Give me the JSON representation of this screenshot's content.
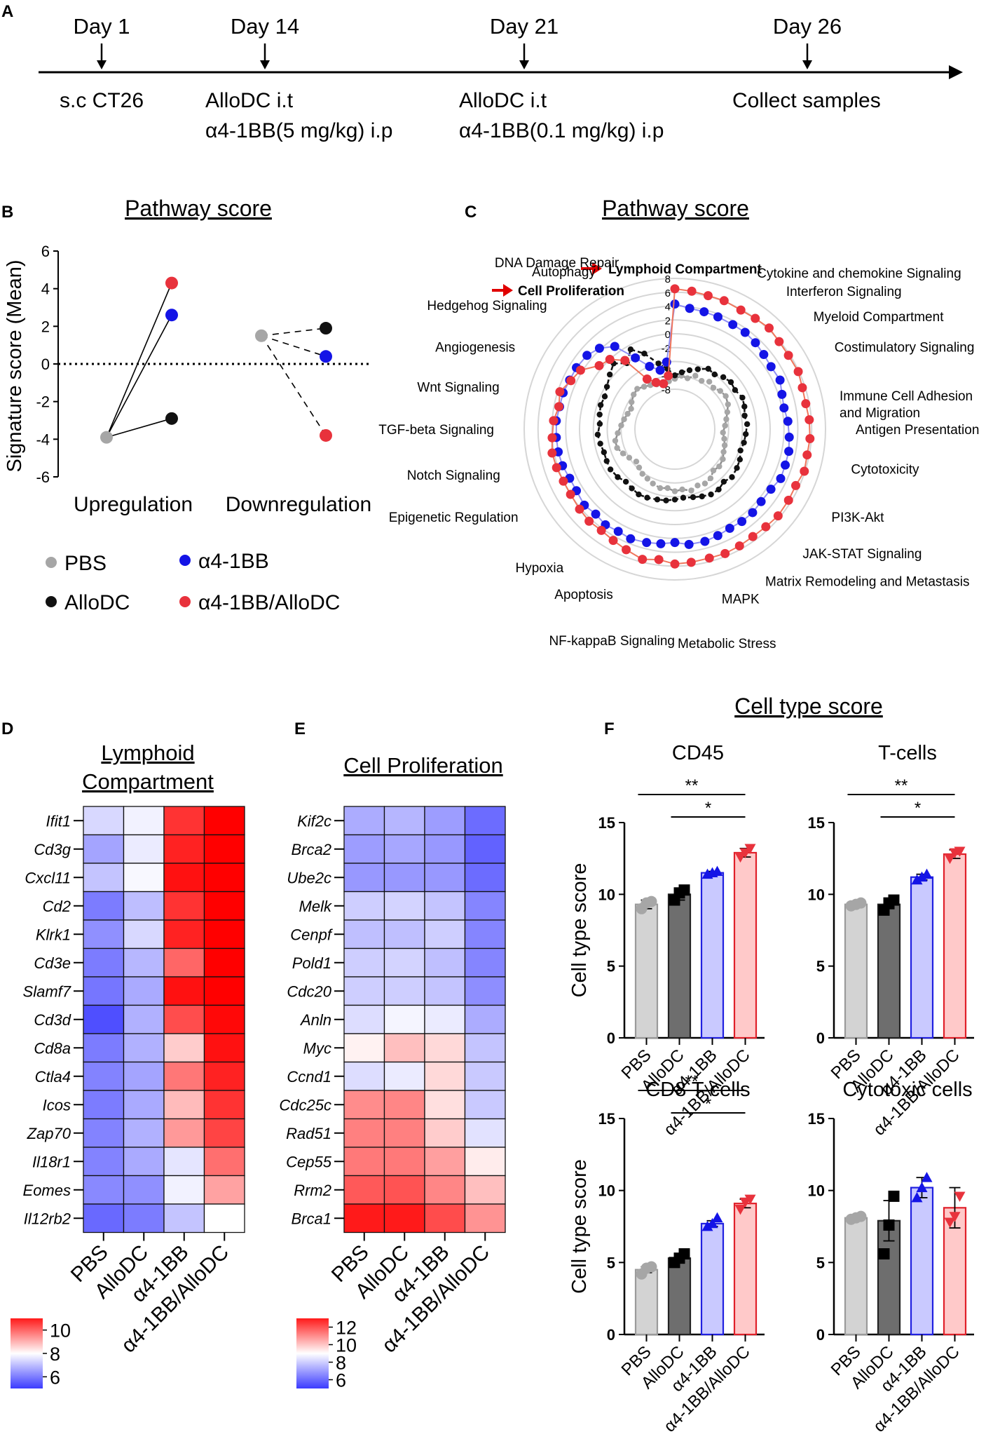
{
  "colors": {
    "pbs": "#a6a6a6",
    "allodc": "#111111",
    "a41bb": "#1414e6",
    "combo": "#e8323c",
    "arrow": "#e00000",
    "heat_low": "#3b3bff",
    "heat_mid": "#ffffff",
    "heat_high": "#ff0000"
  },
  "panelA": {
    "letter": "A",
    "events": [
      {
        "day": "Day 1",
        "lines": [
          "s.c CT26"
        ]
      },
      {
        "day": "Day 14",
        "lines": [
          "AlloDC i.t",
          "α4-1BB(5 mg/kg) i.p"
        ]
      },
      {
        "day": "Day 21",
        "lines": [
          "AlloDC i.t",
          "α4-1BB(0.1 mg/kg) i.p"
        ]
      },
      {
        "day": "Day 26",
        "lines": [
          "Collect samples"
        ]
      }
    ]
  },
  "legend": {
    "pbs": "PBS",
    "allodc": "AlloDC",
    "a41bb": "α4-1BB",
    "combo": "α4-1BB/AlloDC"
  },
  "chart_data": [
    {
      "id": "B",
      "letter": "B",
      "type": "scatter",
      "title": "Pathway score",
      "xlabel": "",
      "ylabel": "Signature score (Mean)",
      "ylim": [
        -6,
        6
      ],
      "yticks": [
        "6",
        "4",
        "2",
        "0",
        "-2",
        "-4",
        "-6"
      ],
      "categories": [
        "Upregulation",
        "Downregulation"
      ],
      "baseline": {
        "Upregulation": -3.9,
        "Downregulation": 1.5
      },
      "series": [
        {
          "name": "AlloDC",
          "Upregulation": -2.9,
          "Downregulation": 1.9
        },
        {
          "name": "α4-1BB",
          "Upregulation": 2.6,
          "Downregulation": 0.4
        },
        {
          "name": "α4-1BB/AlloDC",
          "Upregulation": 4.3,
          "Downregulation": -3.8
        }
      ]
    },
    {
      "id": "C",
      "letter": "C",
      "type": "radar",
      "title": "Pathway score",
      "rlim": [
        -8,
        8
      ],
      "rticks": [
        "8",
        "6",
        "4",
        "2",
        "0",
        "-2",
        "-4",
        "-6",
        "-8"
      ],
      "highlight": [
        "Lymphoid Compartment",
        "Cell Proliferation"
      ],
      "axis_labels": [
        "Lymphoid Compartment",
        "Cytokine and chemokine Signaling",
        "Interferon Signaling",
        "Myeloid Compartment",
        "Costimulatory Signaling",
        "Immune Cell Adhesion and Migration",
        "Antigen Presentation",
        "Cytotoxicity",
        "PI3K-Akt",
        "JAK-STAT Signaling",
        "Matrix Remodeling and Metastasis",
        "MAPK",
        "Metabolic Stress",
        "NF-kappaB Signaling",
        "Apoptosis",
        "Hypoxia",
        "Epigenetic Regulation",
        "Notch Signaling",
        "TGF-beta Signaling",
        "Wnt Signaling",
        "Angiogenesis",
        "Hedgehog Signaling",
        "Autophagy",
        "DNA Damage Repair",
        "Cell Proliferation"
      ],
      "label_angles": [
        0,
        27,
        38,
        50,
        62,
        75,
        90,
        103,
        120,
        135,
        150,
        165,
        179,
        184,
        200,
        218,
        240,
        255,
        270,
        284,
        298,
        315,
        334,
        342,
        350
      ],
      "series": [
        {
          "name": "PBS",
          "angles": [
            0,
            7,
            14,
            21,
            29,
            36,
            43,
            50,
            57,
            65,
            72,
            79,
            86,
            94,
            101,
            108,
            115,
            122,
            130,
            137,
            144,
            151,
            158,
            165,
            173,
            180,
            187,
            194,
            202,
            209,
            216,
            223,
            230,
            238,
            245,
            252,
            259,
            266,
            274,
            281,
            288,
            295,
            302,
            310,
            317,
            324,
            331,
            338,
            346,
            353
          ],
          "values": [
            -6.5,
            -6.0,
            -6.2,
            -5.5,
            -5.8,
            -5.3,
            -5.6,
            -5.2,
            -5.0,
            -5.3,
            -5.8,
            -6.2,
            -6.5,
            -6.8,
            -6.5,
            -6.2,
            -6.0,
            -5.6,
            -5.4,
            -5.6,
            -5.0,
            -4.8,
            -5.0,
            -4.6,
            -5.0,
            -4.8,
            -5.2,
            -5.0,
            -5.3,
            -5.6,
            -5.8,
            -6.2,
            -6.5,
            -6.0,
            -5.5,
            -5.0,
            -5.0,
            -5.5,
            -6.0,
            -6.3,
            -6.6,
            -6.8,
            -6.4,
            -6.0,
            -5.8,
            -6.2,
            -6.5,
            -6.8,
            -7.0,
            -6.8
          ]
        },
        {
          "name": "AlloDC",
          "angles": [
            0,
            7,
            14,
            21,
            29,
            36,
            43,
            50,
            57,
            65,
            72,
            79,
            86,
            94,
            101,
            108,
            115,
            122,
            130,
            137,
            144,
            151,
            158,
            165,
            173,
            180,
            187,
            194,
            202,
            209,
            216,
            223,
            230,
            238,
            245,
            252,
            259,
            266,
            274,
            281,
            288,
            295,
            302,
            310,
            317,
            324,
            331,
            338,
            346,
            353
          ],
          "values": [
            -6.0,
            -5.5,
            -5.0,
            -4.5,
            -3.8,
            -4.0,
            -3.5,
            -3.2,
            -3.4,
            -3.0,
            -3.2,
            -3.5,
            -3.3,
            -3.5,
            -3.6,
            -3.8,
            -3.4,
            -3.2,
            -3.0,
            -3.4,
            -3.0,
            -3.0,
            -3.3,
            -3.6,
            -3.8,
            -3.6,
            -3.4,
            -3.3,
            -3.1,
            -3.0,
            -3.2,
            -3.4,
            -3.0,
            -2.8,
            -2.9,
            -3.0,
            -2.8,
            -2.6,
            -2.9,
            -2.7,
            -2.5,
            -2.6,
            -2.2,
            -1.5,
            -0.8,
            -2.0,
            -0.6,
            -2.0,
            -4.0,
            -5.0
          ]
        },
        {
          "name": "α4-1BB",
          "angles": [
            0,
            7,
            14,
            21,
            29,
            36,
            43,
            50,
            57,
            65,
            72,
            79,
            86,
            94,
            101,
            108,
            115,
            122,
            130,
            137,
            144,
            151,
            158,
            165,
            173,
            180,
            187,
            194,
            202,
            209,
            216,
            223,
            230,
            238,
            245,
            252,
            259,
            266,
            274,
            281,
            288,
            295,
            302,
            310,
            317,
            324,
            331,
            338,
            346,
            353
          ],
          "values": [
            4.3,
            3.8,
            3.7,
            3.6,
            3.5,
            3.5,
            3.3,
            3.0,
            2.8,
            3.0,
            2.5,
            2.3,
            2.6,
            2.8,
            3.0,
            3.0,
            3.1,
            2.6,
            2.5,
            2.7,
            2.7,
            2.6,
            2.8,
            3.0,
            3.0,
            2.6,
            2.9,
            3.1,
            3.3,
            3.1,
            3.3,
            3.0,
            3.3,
            3.0,
            3.0,
            3.3,
            3.4,
            3.4,
            3.4,
            3.2,
            3.2,
            3.0,
            3.0,
            2.8,
            2.2,
            1.0,
            -2.0,
            -4.0,
            -5.0,
            -4.0
          ]
        },
        {
          "name": "α4-1BB/AlloDC",
          "angles": [
            0,
            7,
            14,
            21,
            29,
            36,
            43,
            50,
            57,
            65,
            72,
            79,
            86,
            94,
            101,
            108,
            115,
            122,
            130,
            137,
            144,
            151,
            158,
            165,
            173,
            180,
            187,
            194,
            202,
            209,
            216,
            223,
            230,
            238,
            245,
            252,
            259,
            266,
            274,
            281,
            288,
            295,
            302,
            310,
            317,
            324,
            331,
            338,
            346,
            353
          ],
          "values": [
            6.5,
            6.3,
            6.1,
            6.1,
            5.9,
            6.0,
            6.2,
            5.9,
            5.8,
            5.9,
            5.6,
            5.5,
            5.7,
            5.8,
            5.7,
            5.9,
            5.5,
            5.6,
            5.7,
            5.5,
            5.4,
            5.5,
            5.6,
            5.5,
            5.6,
            5.7,
            5.2,
            5.6,
            5.0,
            4.6,
            4.3,
            4.4,
            4.2,
            4.0,
            4.0,
            4.2,
            4.3,
            4.0,
            3.8,
            3.3,
            3.7,
            2.8,
            2.3,
            0.5,
            0.0,
            -1.5,
            -5.5,
            -6.5,
            -7.0,
            -6.0
          ]
        }
      ]
    },
    {
      "id": "D",
      "letter": "D",
      "type": "heatmap",
      "title": [
        "Lymphoid",
        "Compartment"
      ],
      "columns": [
        "PBS",
        "AlloDC",
        "α4-1BB",
        "α4-1BB/AlloDC"
      ],
      "rows": [
        "Ifit1",
        "Cd3g",
        "Cxcl11",
        "Cd2",
        "Klrk1",
        "Cd3e",
        "Slamf7",
        "Cd3d",
        "Cd8a",
        "Ctla4",
        "Icos",
        "Zap70",
        "Il18r1",
        "Eomes",
        "Il12rb2"
      ],
      "values": [
        [
          7.4,
          7.8,
          10.4,
          11.7
        ],
        [
          6.6,
          7.7,
          10.6,
          11.7
        ],
        [
          7.1,
          7.9,
          10.8,
          11.5
        ],
        [
          6.0,
          7.0,
          10.4,
          11.2
        ],
        [
          6.3,
          7.4,
          10.6,
          11.2
        ],
        [
          6.0,
          6.9,
          9.8,
          11.2
        ],
        [
          5.9,
          6.7,
          10.8,
          11.3
        ],
        [
          5.3,
          6.8,
          10.1,
          10.9
        ],
        [
          6.0,
          6.8,
          8.6,
          10.8
        ],
        [
          6.1,
          6.6,
          9.6,
          10.6
        ],
        [
          6.0,
          6.7,
          8.8,
          10.4
        ],
        [
          6.1,
          6.8,
          9.2,
          10.2
        ],
        [
          6.1,
          6.7,
          7.6,
          9.7
        ],
        [
          6.2,
          6.3,
          7.8,
          9.1
        ],
        [
          5.7,
          6.0,
          7.1,
          8.0
        ]
      ],
      "colorbar": {
        "min": 5,
        "max": 11,
        "ticks": [
          "10",
          "8",
          "6"
        ],
        "tick_values": [
          10,
          8,
          6
        ]
      }
    },
    {
      "id": "E",
      "letter": "E",
      "type": "heatmap",
      "title": [
        "Cell Proliferation"
      ],
      "columns": [
        "PBS",
        "AlloDC",
        "α4-1BB",
        "α4-1BB/AlloDC"
      ],
      "rows": [
        "Kif2c",
        "Brca2",
        "Ube2c",
        "Melk",
        "Cenpf",
        "Pold1",
        "Cdc20",
        "Anln",
        "Myc",
        "Ccnd1",
        "Cdc25c",
        "Rad51",
        "Cep55",
        "Rrm2",
        "Brca1"
      ],
      "values": [
        [
          7.3,
          7.5,
          7.0,
          6.0
        ],
        [
          7.0,
          7.2,
          6.9,
          5.8
        ],
        [
          6.9,
          6.9,
          6.9,
          6.0
        ],
        [
          8.0,
          8.1,
          7.8,
          6.5
        ],
        [
          7.7,
          7.7,
          8.0,
          6.5
        ],
        [
          8.0,
          8.1,
          7.7,
          6.5
        ],
        [
          8.0,
          8.0,
          7.8,
          6.7
        ],
        [
          8.3,
          8.8,
          8.6,
          7.3
        ],
        [
          9.2,
          10.0,
          9.6,
          7.8
        ],
        [
          8.3,
          8.6,
          9.6,
          7.9
        ],
        [
          10.8,
          10.9,
          9.5,
          7.9
        ],
        [
          11.0,
          11.0,
          9.8,
          8.4
        ],
        [
          11.1,
          11.1,
          10.5,
          9.3
        ],
        [
          11.6,
          11.7,
          10.9,
          10.0
        ],
        [
          12.6,
          12.6,
          11.8,
          10.7
        ]
      ],
      "colorbar": {
        "min": 5,
        "max": 13,
        "ticks": [
          "12",
          "10",
          "8",
          "6"
        ],
        "tick_values": [
          12,
          10,
          8,
          6
        ]
      }
    },
    {
      "id": "F1",
      "letter": "F",
      "section_title": "Cell type score",
      "type": "bar",
      "title": "CD45",
      "ylabel": "Cell type score",
      "categories": [
        "PBS",
        "AlloDC",
        "α4-1BB",
        "α4-1BB/AlloDC"
      ],
      "values": [
        9.3,
        10.0,
        11.5,
        12.9
      ],
      "errors": [
        0.3,
        0.4,
        0.1,
        0.3
      ],
      "points": [
        [
          9.0,
          9.4,
          9.5
        ],
        [
          9.6,
          10.1,
          10.3
        ],
        [
          11.4,
          11.5,
          11.6
        ],
        [
          12.6,
          12.9,
          13.2
        ]
      ],
      "ylim": [
        0,
        15
      ],
      "yticks": [
        "15",
        "10",
        "5",
        "0"
      ],
      "significance": [
        {
          "from": 0,
          "to": 3,
          "label": "**"
        },
        {
          "from": 1,
          "to": 3,
          "label": "*"
        }
      ]
    },
    {
      "id": "F2",
      "type": "bar",
      "title": "T-cells",
      "ylabel": "",
      "categories": [
        "PBS",
        "AlloDC",
        "α4-1BB",
        "α4-1BB/AlloDC"
      ],
      "values": [
        9.3,
        9.3,
        11.2,
        12.8
      ],
      "errors": [
        0.2,
        0.3,
        0.2,
        0.3
      ],
      "points": [
        [
          9.2,
          9.3,
          9.4
        ],
        [
          8.9,
          9.4,
          9.6
        ],
        [
          11.0,
          11.2,
          11.4
        ],
        [
          12.5,
          12.9,
          13.0
        ]
      ],
      "ylim": [
        0,
        15
      ],
      "yticks": [
        "15",
        "10",
        "5",
        "0"
      ],
      "significance": [
        {
          "from": 0,
          "to": 3,
          "label": "**"
        },
        {
          "from": 1,
          "to": 3,
          "label": "*"
        }
      ]
    },
    {
      "id": "F3",
      "type": "bar",
      "title": "CD8 T-cells",
      "ylabel": "Cell type score",
      "categories": [
        "PBS",
        "AlloDC",
        "α4-1BB",
        "α4-1BB/AlloDC"
      ],
      "values": [
        4.5,
        5.3,
        7.7,
        9.1
      ],
      "errors": [
        0.2,
        0.3,
        0.2,
        0.3
      ],
      "points": [
        [
          4.2,
          4.6,
          4.7
        ],
        [
          5.0,
          5.3,
          5.6
        ],
        [
          7.5,
          7.7,
          8.1
        ],
        [
          8.7,
          9.2,
          9.4
        ]
      ],
      "ylim": [
        0,
        15
      ],
      "yticks": [
        "15",
        "10",
        "5",
        "0"
      ],
      "significance": [
        {
          "from": 0,
          "to": 3,
          "label": "**"
        },
        {
          "from": 1,
          "to": 3,
          "label": "*"
        }
      ]
    },
    {
      "id": "F4",
      "type": "bar",
      "title": "Cytotoxic cells",
      "ylabel": "",
      "categories": [
        "PBS",
        "AlloDC",
        "α4-1BB",
        "α4-1BB/AlloDC"
      ],
      "values": [
        8.1,
        7.9,
        10.2,
        8.8
      ],
      "errors": [
        0.1,
        1.4,
        0.7,
        1.4
      ],
      "points": [
        [
          8.0,
          8.1,
          8.2
        ],
        [
          5.6,
          7.6,
          9.6
        ],
        [
          9.5,
          10.2,
          10.9
        ],
        [
          7.8,
          8.2,
          9.6
        ]
      ],
      "ylim": [
        0,
        15
      ],
      "yticks": [
        "15",
        "10",
        "5",
        "0"
      ],
      "significance": []
    }
  ]
}
